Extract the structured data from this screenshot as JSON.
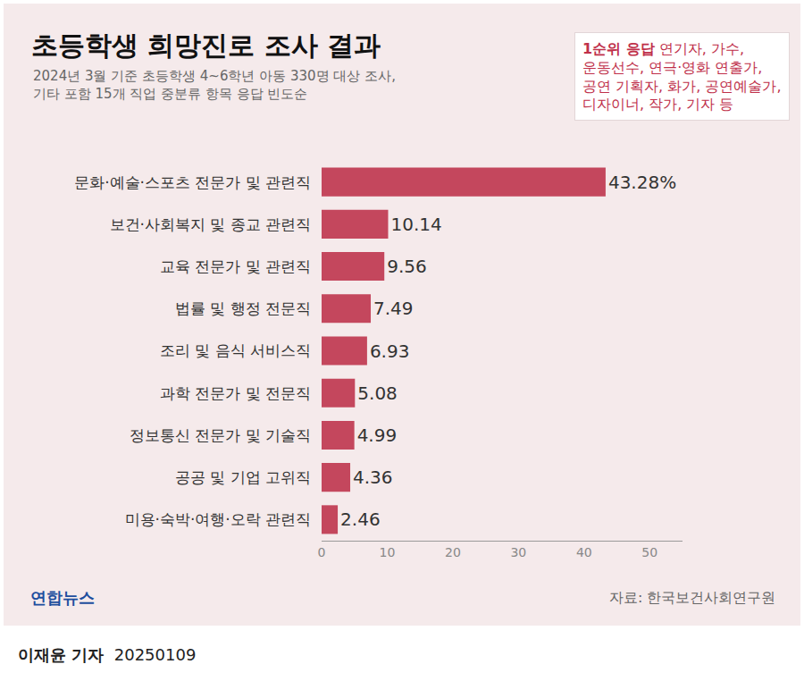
{
  "chart_data": {
    "type": "bar",
    "title": "초등학생 희망진로 조사 결과",
    "subtitle": [
      "2024년 3월 기준 초등학생 4~6학년 아동 330명 대상 조사,",
      "기타 포함 15개 직업 중분류 항목 응답 빈도순"
    ],
    "categories": [
      "문화·예술·스포츠 전문가 및 관련직",
      "보건·사회복지 및 종교 관련직",
      "교육 전문가 및 관련직",
      "법률 및 행정 전문직",
      "조리 및 음식 서비스직",
      "과학 전문가 및 전문직",
      "정보통신 전문가 및 기술직",
      "공공 및 기업 고위직",
      "미용·숙박·여행·오락 관련직"
    ],
    "values": [
      43.28,
      10.14,
      9.56,
      7.49,
      6.93,
      5.08,
      4.99,
      4.36,
      2.46
    ],
    "value_labels": [
      "43.28%",
      "10.14",
      "9.56",
      "7.49",
      "6.93",
      "5.08",
      "4.99",
      "4.36",
      "2.46"
    ],
    "color": "#c4475d",
    "orientation": "horizontal",
    "data_labels": true,
    "grid": false,
    "xlim": [
      0,
      55
    ],
    "xticks": [
      0,
      10,
      20,
      30,
      40,
      50
    ],
    "callout_title": "1순위 응답",
    "callout_lines": [
      "연기자, 가수,",
      "운동선수, 연극·영화 연출가,",
      "공연 기획자, 화가, 공연예술가,",
      "디자이너, 작가, 기자 등"
    ],
    "logo": "연합뉴스",
    "source": "자료: 한국보건사회연구원",
    "byline": {
      "reporter": "이재윤 기자",
      "date": "20250109"
    }
  }
}
